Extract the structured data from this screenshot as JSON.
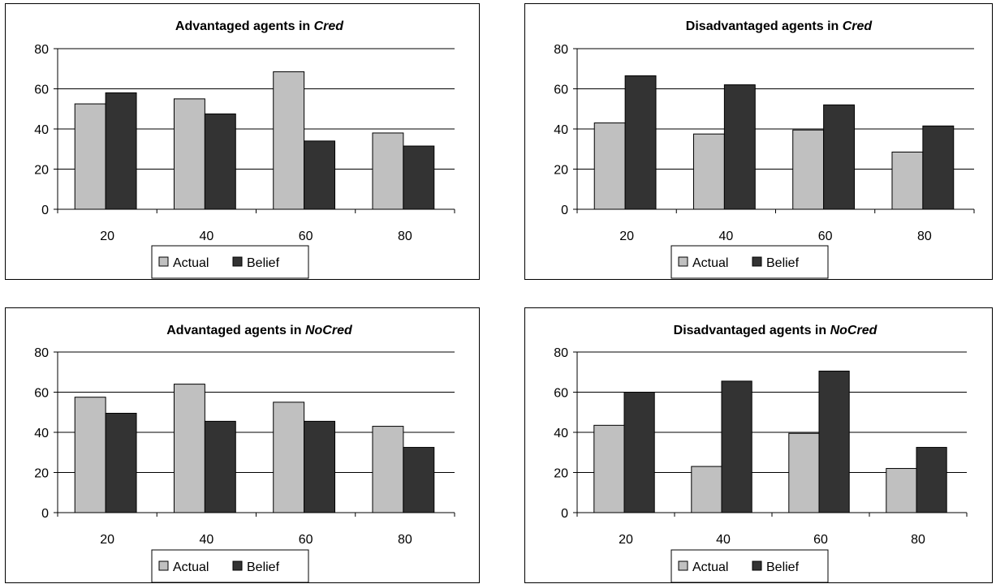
{
  "chart_data": [
    {
      "type": "bar",
      "title": "Advantaged agents in ",
      "title_emphasis": "Cred",
      "categories": [
        "20",
        "40",
        "60",
        "80"
      ],
      "series": [
        {
          "name": "Actual",
          "values": [
            52.5,
            55,
            68.5,
            38
          ],
          "color": "#c0c0c0"
        },
        {
          "name": "Belief",
          "values": [
            58,
            47.5,
            34,
            31.5
          ],
          "color": "#333333"
        }
      ],
      "yticks": [
        "0",
        "20",
        "40",
        "60",
        "80"
      ],
      "ylim": [
        0,
        80
      ],
      "grid": true,
      "legend_position": "bottom"
    },
    {
      "type": "bar",
      "title": "Disadvantaged agents in ",
      "title_emphasis": "Cred",
      "categories": [
        "20",
        "40",
        "60",
        "80"
      ],
      "series": [
        {
          "name": "Actual",
          "values": [
            43,
            37.5,
            39.5,
            28.5
          ],
          "color": "#c0c0c0"
        },
        {
          "name": "Belief",
          "values": [
            66.5,
            62,
            52,
            41.5
          ],
          "color": "#333333"
        }
      ],
      "yticks": [
        "0",
        "20",
        "40",
        "60",
        "80"
      ],
      "ylim": [
        0,
        80
      ],
      "grid": true,
      "legend_position": "bottom"
    },
    {
      "type": "bar",
      "title": "Advantaged agents in ",
      "title_emphasis": "NoCred",
      "categories": [
        "20",
        "40",
        "60",
        "80"
      ],
      "series": [
        {
          "name": "Actual",
          "values": [
            57.5,
            64,
            55,
            43
          ],
          "color": "#c0c0c0"
        },
        {
          "name": "Belief",
          "values": [
            49.5,
            45.5,
            45.5,
            32.5
          ],
          "color": "#333333"
        }
      ],
      "yticks": [
        "0",
        "20",
        "40",
        "60",
        "80"
      ],
      "ylim": [
        0,
        80
      ],
      "grid": true,
      "legend_position": "bottom"
    },
    {
      "type": "bar",
      "title": "Disadvantaged agents in ",
      "title_emphasis": "NoCred",
      "categories": [
        "20",
        "40",
        "60",
        "80"
      ],
      "series": [
        {
          "name": "Actual",
          "values": [
            43.5,
            23,
            39.5,
            22
          ],
          "color": "#c0c0c0"
        },
        {
          "name": "Belief",
          "values": [
            60,
            65.5,
            70.5,
            32.5
          ],
          "color": "#333333"
        }
      ],
      "yticks": [
        "0",
        "20",
        "40",
        "60",
        "80"
      ],
      "ylim": [
        0,
        80
      ],
      "grid": true,
      "legend_position": "bottom"
    }
  ]
}
